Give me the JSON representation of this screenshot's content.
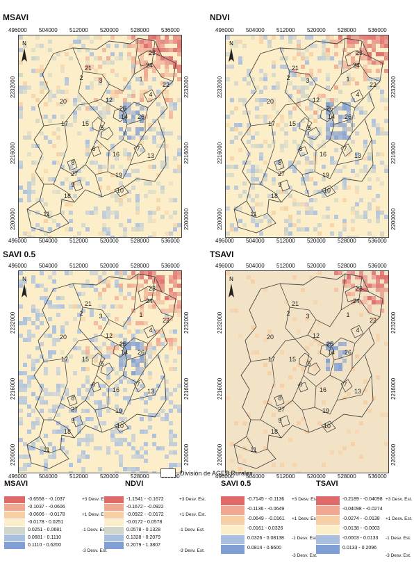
{
  "panels": [
    {
      "title": "MSAVI",
      "variant": "mixed"
    },
    {
      "title": "NDVI",
      "variant": "mixed"
    },
    {
      "title": "SAVI 0.5",
      "variant": "blue"
    },
    {
      "title": "TSAVI",
      "variant": "beige"
    }
  ],
  "axes": {
    "x_ticks": [
      "496000",
      "504000",
      "512000",
      "520000",
      "528000",
      "536000"
    ],
    "y_ticks": [
      "2232000",
      "2216000",
      "2200000"
    ]
  },
  "north_label": "N",
  "region_labels": [
    "1",
    "2",
    "3",
    "4",
    "5",
    "6",
    "7",
    "8",
    "9",
    "10",
    "11",
    "12",
    "13",
    "14",
    "15",
    "16",
    "17",
    "18",
    "19",
    "20",
    "21",
    "22",
    "23",
    "24",
    "25",
    "26",
    "27"
  ],
  "legend_item": "División de AGEB Rurales",
  "colors": {
    "red_strong": "#e06a6a",
    "red_light": "#f0a890",
    "orange_light": "#f6cfa4",
    "cream": "#fbeec8",
    "grey": "#cfd5c9",
    "blue_light": "#a9bfe0",
    "blue": "#7f9ed4",
    "beige_bg": "#f3e3c6"
  },
  "legends": [
    {
      "title": "MSAVI",
      "ranges": [
        "-0.6558 - -0.1037",
        "-0.1037 - -0.0606",
        "-0.0606 - -0.0178",
        "-0.0178 - 0.0251",
        "0.0251 - 0.0681",
        "0.0681 - 0.1110",
        "0.1110 - 0.6200"
      ],
      "std": [
        "+3 Desv. Est.",
        "+1 Desv. Est.",
        "-1 Desv. Est.",
        "-3 Desv. Est."
      ]
    },
    {
      "title": "NDVI",
      "ranges": [
        "-1.1541 - -0.1672",
        "-0.1672 - -0.0922",
        "-0.0922 - -0.0172",
        "-0.0172 - 0.0578",
        "0.0578 - 0.1328",
        "0.1328 - 0.2079",
        "0.2079 - 1.3807"
      ],
      "std": [
        "+3 Desv. Est.",
        "+1 Desv. Est.",
        "-1 Desv. Est.",
        "-3 Desv. Est."
      ]
    },
    {
      "title": "SAVI 0.5",
      "ranges": [
        "-0.7145 - -0.1136",
        "-0.1136 - -0.0649",
        "-0.0649 - -0.0161",
        "-0.0161 - 0.0326",
        "0.0326 - 0.08138",
        "0.0814 - 0.6600"
      ],
      "std": [
        "+3 Desv. Est.",
        "+1 Desv. Est.",
        "-1 Desv. Est.",
        "-3 Desv. Est."
      ]
    },
    {
      "title": "TSAVI",
      "ranges": [
        "-0.2189 - -0.04098",
        "-0.04098 - -0.0274",
        "-0.0274 - -0.0138",
        "-0.0138 - -0.0003",
        "-0.0003 - 0.0133",
        "0.0133 - 0.2096"
      ],
      "std": [
        "+3 Desv. Est.",
        "+1 Desv. Est.",
        "-1 Desv. Est.",
        "-3 Desv. Est."
      ]
    }
  ]
}
